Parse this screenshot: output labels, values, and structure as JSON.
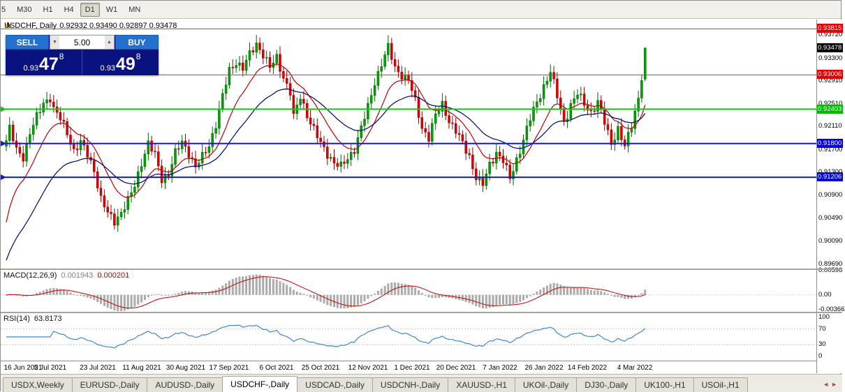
{
  "toolbar": {
    "timeframes": [
      {
        "label": "5",
        "active": false
      },
      {
        "label": "M30",
        "active": false
      },
      {
        "label": "H1",
        "active": false
      },
      {
        "label": "H4",
        "active": false
      },
      {
        "label": "D1",
        "active": true
      },
      {
        "label": "W1",
        "active": false
      },
      {
        "label": "MN",
        "active": false
      }
    ]
  },
  "chart": {
    "title": {
      "symbol": "USDCHF, Daily",
      "ohlc": "0.92932 0.93490 0.92897 0.93478"
    }
  },
  "trade": {
    "sell_label": "SELL",
    "buy_label": "BUY",
    "volume": "5.00",
    "sell_price": {
      "small": "0.93",
      "big": "47",
      "sup": "8"
    },
    "buy_price": {
      "small": "0.93",
      "big": "49",
      "sup": "8"
    }
  },
  "macd": {
    "label": "MACD(12,26,9)",
    "value_main": "0.001943",
    "value_signal": "0.000201"
  },
  "rsi": {
    "label": "RSI(14)",
    "value": "63.8173"
  },
  "icons": {
    "spinner_up": "▲",
    "spinner_down": "▼",
    "tab_scroll_left": "◄",
    "tab_scroll_right": "►"
  },
  "colors": {
    "trade_button": "#2470CE",
    "trade_panel_bg": "#0A1280",
    "up": "#00A000",
    "up_stroke": "#006600",
    "down": "#DE0000",
    "down_stroke": "#990000",
    "ma_fast": "#C00000",
    "ma_slow": "#000080",
    "macd_hist": "#ABABAB",
    "macd_signal": "#C40000",
    "rsi_line": "#3E86D6",
    "dash_grid": "#C8C8C8",
    "level_red": "#D43030",
    "level_green": "#00D000",
    "level_blue": "#1414E6",
    "badge_black": "#000000",
    "badge_red": "#E00000",
    "badge_green": "#00BB00",
    "badge_blue": "#0000E0"
  },
  "tabs": {
    "active_index": 3,
    "items": [
      {
        "label": "USDX,Weekly"
      },
      {
        "label": "EURUSD-,Daily"
      },
      {
        "label": "AUDUSD-,Daily"
      },
      {
        "label": "USDCHF-,Daily"
      },
      {
        "label": "USDCAD-,Daily"
      },
      {
        "label": "USDCNH-,Daily"
      },
      {
        "label": "XAUUSD-,H1"
      },
      {
        "label": "UKOil-,Daily"
      },
      {
        "label": "DJ30-,Daily"
      },
      {
        "label": "UK100-,H1"
      },
      {
        "label": "USOil-,H1"
      }
    ]
  },
  "chart_data": {
    "type": "candlestick",
    "symbol": "USDCHF",
    "period": "Daily",
    "title": "USDCHF, Daily",
    "last_candle": {
      "o": 0.92932,
      "h": 0.9349,
      "l": 0.92897,
      "c": 0.93478
    },
    "current_bid": 0.93478,
    "current_ask": 0.93498,
    "candles_count": 190,
    "price_range": {
      "top": 0.9398,
      "bottom": 0.896
    },
    "layout": {
      "x0": 8,
      "dx": 4.84,
      "body_w": 3
    },
    "series_anchors": [
      [
        0,
        0.9185
      ],
      [
        1,
        0.9205
      ],
      [
        3,
        0.9168
      ],
      [
        5,
        0.9158
      ],
      [
        7,
        0.9198
      ],
      [
        9,
        0.9225
      ],
      [
        11,
        0.9252
      ],
      [
        13,
        0.9262
      ],
      [
        14,
        0.924
      ],
      [
        16,
        0.9222
      ],
      [
        18,
        0.92
      ],
      [
        20,
        0.9168
      ],
      [
        22,
        0.918
      ],
      [
        24,
        0.916
      ],
      [
        26,
        0.9135
      ],
      [
        28,
        0.9082
      ],
      [
        30,
        0.9056
      ],
      [
        32,
        0.9044
      ],
      [
        34,
        0.906
      ],
      [
        36,
        0.9078
      ],
      [
        38,
        0.9105
      ],
      [
        40,
        0.9148
      ],
      [
        42,
        0.918
      ],
      [
        44,
        0.9158
      ],
      [
        46,
        0.9118
      ],
      [
        48,
        0.9128
      ],
      [
        50,
        0.9162
      ],
      [
        52,
        0.9182
      ],
      [
        54,
        0.9165
      ],
      [
        56,
        0.9138
      ],
      [
        58,
        0.9155
      ],
      [
        60,
        0.9178
      ],
      [
        62,
        0.9215
      ],
      [
        64,
        0.9262
      ],
      [
        66,
        0.9308
      ],
      [
        68,
        0.9325
      ],
      [
        70,
        0.9312
      ],
      [
        72,
        0.9335
      ],
      [
        74,
        0.9356
      ],
      [
        76,
        0.9338
      ],
      [
        78,
        0.9312
      ],
      [
        80,
        0.933
      ],
      [
        82,
        0.9298
      ],
      [
        84,
        0.927
      ],
      [
        85,
        0.9225
      ],
      [
        87,
        0.9262
      ],
      [
        89,
        0.9232
      ],
      [
        91,
        0.9205
      ],
      [
        93,
        0.9178
      ],
      [
        95,
        0.9162
      ],
      [
        97,
        0.9148
      ],
      [
        99,
        0.9138
      ],
      [
        101,
        0.9152
      ],
      [
        103,
        0.9172
      ],
      [
        105,
        0.9208
      ],
      [
        107,
        0.9242
      ],
      [
        109,
        0.9288
      ],
      [
        111,
        0.9322
      ],
      [
        113,
        0.9348
      ],
      [
        115,
        0.9312
      ],
      [
        117,
        0.9302
      ],
      [
        119,
        0.9292
      ],
      [
        121,
        0.9252
      ],
      [
        123,
        0.9208
      ],
      [
        125,
        0.9192
      ],
      [
        127,
        0.9228
      ],
      [
        129,
        0.9248
      ],
      [
        131,
        0.9222
      ],
      [
        133,
        0.9202
      ],
      [
        135,
        0.9178
      ],
      [
        137,
        0.9158
      ],
      [
        139,
        0.9122
      ],
      [
        141,
        0.9106
      ],
      [
        143,
        0.9142
      ],
      [
        145,
        0.9166
      ],
      [
        147,
        0.915
      ],
      [
        149,
        0.9116
      ],
      [
        151,
        0.9152
      ],
      [
        153,
        0.9188
      ],
      [
        155,
        0.9222
      ],
      [
        157,
        0.9252
      ],
      [
        159,
        0.9282
      ],
      [
        161,
        0.9306
      ],
      [
        163,
        0.9262
      ],
      [
        165,
        0.9218
      ],
      [
        167,
        0.9248
      ],
      [
        169,
        0.9266
      ],
      [
        171,
        0.925
      ],
      [
        173,
        0.9236
      ],
      [
        175,
        0.9252
      ],
      [
        177,
        0.9216
      ],
      [
        179,
        0.9182
      ],
      [
        181,
        0.9206
      ],
      [
        183,
        0.9172
      ],
      [
        185,
        0.9212
      ],
      [
        187,
        0.9262
      ],
      [
        188,
        0.9298
      ],
      [
        189,
        0.9348
      ]
    ],
    "moving_averages": [
      {
        "name": "fast-ma",
        "period": 12,
        "seed": 0.9015,
        "color": "#C00000"
      },
      {
        "name": "slow-ma",
        "period": 30,
        "seed": 0.896,
        "color": "#000080"
      }
    ],
    "levels": [
      {
        "value": 0.93815,
        "color": "#D43030",
        "w": 1,
        "marker": false
      },
      {
        "value": 0.93006,
        "color": "#D43030",
        "w": 1,
        "marker": false
      },
      {
        "value": 0.92403,
        "color": "#00D000",
        "w": 2,
        "marker": true
      },
      {
        "value": 0.918,
        "color": "#1414E6",
        "w": 2,
        "marker": true
      },
      {
        "value": 0.91206,
        "color": "#1414E6",
        "w": 2,
        "marker": true
      }
    ],
    "price_axis_ticks": [
      "0.93720",
      "0.93300",
      "0.92910",
      "0.92510",
      "0.92110",
      "0.91700",
      "0.91300",
      "0.90900",
      "0.90490",
      "0.90090",
      "0.89690"
    ],
    "price_badges": [
      {
        "label": "0.93815",
        "value": 0.93815,
        "color": "#E00000"
      },
      {
        "label": "0.93478",
        "value": 0.93478,
        "color": "#000000"
      },
      {
        "label": "0.93006",
        "value": 0.93006,
        "color": "#E00000"
      },
      {
        "label": "0.92403",
        "value": 0.92403,
        "color": "#00BB00"
      },
      {
        "label": "0.91800",
        "value": 0.918,
        "color": "#0000E0"
      },
      {
        "label": "0.91206",
        "value": 0.91206,
        "color": "#0000E0"
      }
    ],
    "x_ticks": [
      {
        "i": 0,
        "label": "16 Jun 2021"
      },
      {
        "i": 13,
        "label": "5 Jul 2021"
      },
      {
        "i": 27,
        "label": "23 Jul 2021"
      },
      {
        "i": 40,
        "label": "11 Aug 2021"
      },
      {
        "i": 53,
        "label": "30 Aug 2021"
      },
      {
        "i": 66,
        "label": "17 Sep 2021"
      },
      {
        "i": 80,
        "label": "6 Oct 2021"
      },
      {
        "i": 93,
        "label": "25 Oct 2021"
      },
      {
        "i": 107,
        "label": "12 Nov 2021"
      },
      {
        "i": 120,
        "label": "1 Dec 2021"
      },
      {
        "i": 133,
        "label": "20 Dec 2021"
      },
      {
        "i": 146,
        "label": "7 Jan 2022"
      },
      {
        "i": 159,
        "label": "26 Jan 2022"
      },
      {
        "i": 172,
        "label": "14 Feb 2022"
      },
      {
        "i": 186,
        "label": "4 Mar 2022"
      }
    ],
    "macd": {
      "params": "12,26,9",
      "value_main": 0.001943,
      "value_signal": 0.000201,
      "range": {
        "top": 0.0062,
        "bottom": -0.0042
      },
      "axis": [
        {
          "v": 0.00596,
          "label": "0.00596"
        },
        {
          "v": 0,
          "label": "0.00"
        },
        {
          "v": -0.00366,
          "label": "-0.00366"
        }
      ]
    },
    "rsi": {
      "period": 14,
      "value": 63.8173,
      "range": {
        "top": 110,
        "bottom": -10
      },
      "levels": [
        70,
        30
      ],
      "axis": [
        {
          "v": 100,
          "label": "100"
        },
        {
          "v": 70,
          "label": "70"
        },
        {
          "v": 30,
          "label": "30"
        },
        {
          "v": 0,
          "label": "0"
        }
      ]
    }
  }
}
